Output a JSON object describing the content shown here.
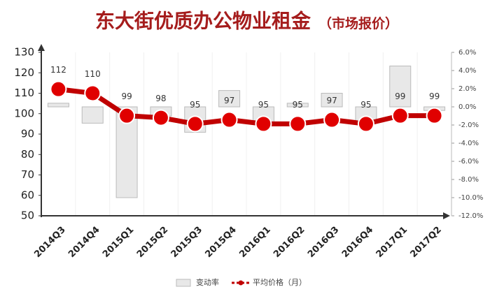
{
  "chart_data": {
    "type": "combo",
    "title": "东大街优质办公物业租金",
    "subtitle": "（市场报价）",
    "categories": [
      "2014Q3",
      "2014Q4",
      "2015Q1",
      "2015Q2",
      "2015Q3",
      "2015Q4",
      "2016Q1",
      "2016Q2",
      "2016Q3",
      "2016Q4",
      "2017Q1",
      "2017Q2"
    ],
    "series": [
      {
        "name": "变动率",
        "type": "bar",
        "axis": "y2",
        "color": "#e8e8e8",
        "values": [
          0.4,
          -1.8,
          -10.0,
          -1.0,
          -2.8,
          1.8,
          -1.8,
          0.4,
          1.5,
          -1.8,
          4.5,
          -0.4
        ]
      },
      {
        "name": "平均价格（月）",
        "type": "line",
        "color": "#c00000",
        "values": [
          112,
          110,
          99,
          98,
          95,
          97,
          95,
          95,
          97,
          95,
          99,
          99
        ]
      }
    ],
    "ylim": [
      50,
      130
    ],
    "yticks": [
      50,
      60,
      70,
      80,
      90,
      100,
      110,
      120,
      130
    ],
    "y2lim": [
      -12,
      6
    ],
    "y2ticks": [
      {
        "value": 6,
        "label": "6.0%"
      },
      {
        "value": 4,
        "label": "4.0%"
      },
      {
        "value": 2,
        "label": "2.0%"
      },
      {
        "value": 0,
        "label": "0.0%"
      },
      {
        "value": -2,
        "label": "-2.0%"
      },
      {
        "value": -4,
        "label": "-4.0%"
      },
      {
        "value": -6,
        "label": "-6.0%"
      },
      {
        "value": -8,
        "label": "-8.0%"
      },
      {
        "value": -10,
        "label": "-10.0%"
      },
      {
        "value": -12,
        "label": "-12.0%"
      }
    ]
  }
}
